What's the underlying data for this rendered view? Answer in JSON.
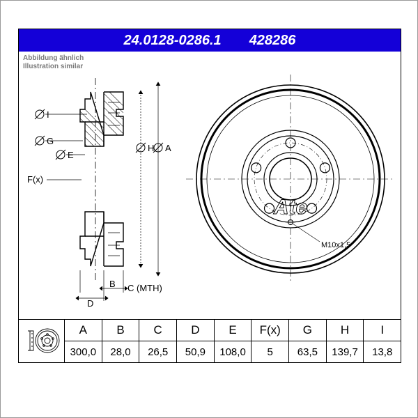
{
  "header": {
    "partNumber": "24.0128-0286.1",
    "altNumber": "428286",
    "bg": "#1400d8",
    "fg": "#ffffff"
  },
  "subtitle": {
    "de": "Abbildung ähnlich",
    "en": "Illustration similar",
    "color": "#7a7a7a"
  },
  "diagram": {
    "labels": {
      "dimA": "A",
      "dimB": "B",
      "dimC": "C (MTH)",
      "dimD": "D",
      "dimE": "E",
      "dimF": "F(x)",
      "dimG": "G",
      "dimH": "H",
      "dimI": "I",
      "thread": "M10x1,5"
    },
    "brand": "Ate",
    "strokeColor": "#000000",
    "lineWidth": 1.2,
    "thinLine": 0.6
  },
  "specs": {
    "columns": [
      "A",
      "B",
      "C",
      "D",
      "E",
      "F(x)",
      "G",
      "H",
      "I"
    ],
    "values": [
      "300,0",
      "28,0",
      "26,5",
      "50,9",
      "108,0",
      "5",
      "63,5",
      "139,7",
      "13,8"
    ]
  }
}
